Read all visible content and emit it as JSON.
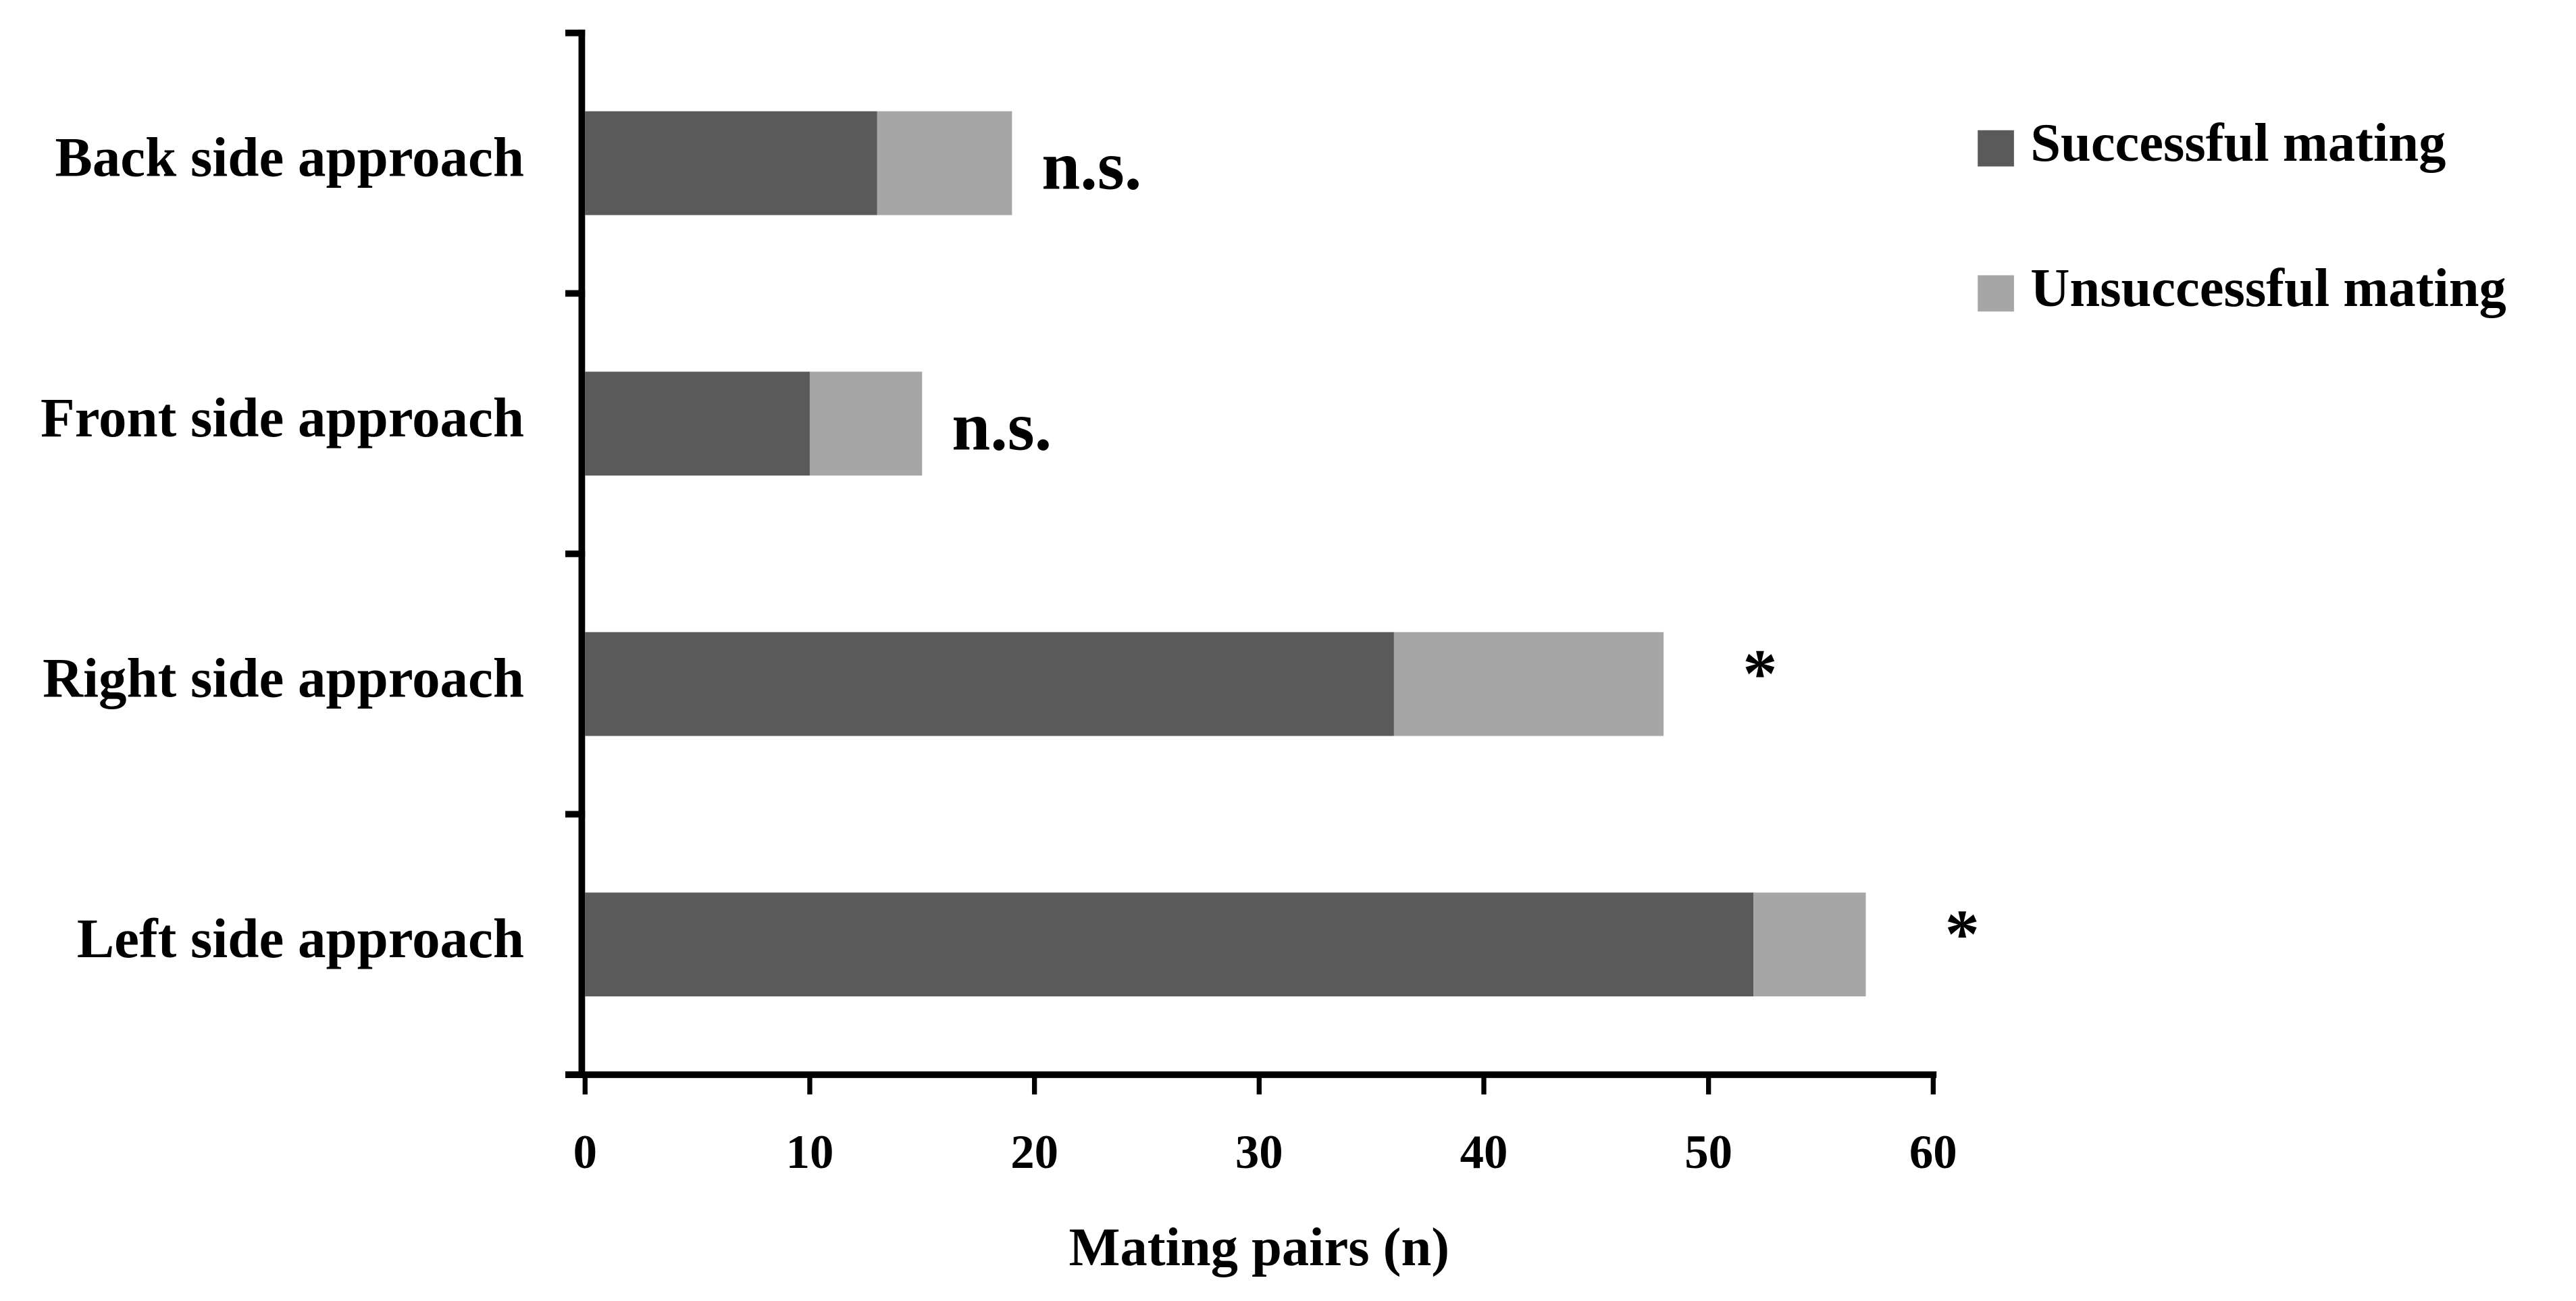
{
  "chart_data": {
    "type": "stacked_bar_horizontal",
    "categories": [
      "Back side approach",
      "Front side approach",
      "Right side approach",
      "Left side approach"
    ],
    "series": [
      {
        "name": "Successful mating",
        "color": "#5a5a5a",
        "values": [
          13,
          10,
          36,
          52
        ]
      },
      {
        "name": "Unsuccessful mating",
        "color": "#a6a6a6",
        "values": [
          6,
          5,
          12,
          5
        ]
      }
    ],
    "annotations": [
      "n.s.",
      "n.s.",
      "*",
      "*"
    ],
    "x_label": "Mating pairs (n)",
    "xlim": [
      0,
      60
    ],
    "xticks": [
      0,
      10,
      20,
      30,
      40,
      50,
      60
    ],
    "legend": "top-right"
  }
}
